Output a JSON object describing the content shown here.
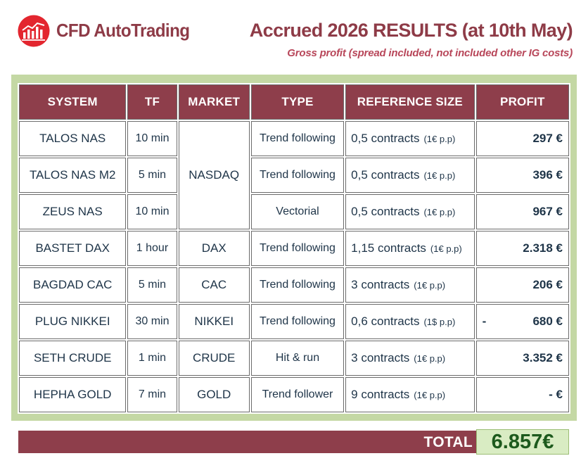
{
  "header": {
    "brand": "CFD AutoTrading",
    "title": "Accrued 2026 RESULTS (at 10th May)",
    "subtitle": "Gross profit (spread included, not included other IG costs)"
  },
  "table": {
    "columns": [
      "SYSTEM",
      "TF",
      "MARKET",
      "TYPE",
      "REFERENCE SIZE",
      "PROFIT"
    ],
    "rows": [
      {
        "system": "TALOS NAS",
        "tf": "10 min",
        "market": "NASDAQ",
        "type": "Trend following",
        "size": "0,5 contracts",
        "pp": "(1€ p.p)",
        "sign": "",
        "profit": "297 €"
      },
      {
        "system": "TALOS NAS M2",
        "tf": "5 min",
        "market": "",
        "type": "Trend following",
        "size": "0,5 contracts",
        "pp": "(1€ p.p)",
        "sign": "",
        "profit": "396 €"
      },
      {
        "system": "ZEUS NAS",
        "tf": "10 min",
        "market": "",
        "type": "Vectorial",
        "size": "0,5 contracts",
        "pp": "(1€ p.p)",
        "sign": "",
        "profit": "967 €"
      },
      {
        "system": "BASTET DAX",
        "tf": "1 hour",
        "market": "DAX",
        "type": "Trend following",
        "size": "1,15 contracts",
        "pp": "(1€ p.p)",
        "sign": "",
        "profit": "2.318 €"
      },
      {
        "system": "BAGDAD CAC",
        "tf": "5 min",
        "market": "CAC",
        "type": "Trend following",
        "size": "3 contracts",
        "pp": "(1€ p.p)",
        "sign": "",
        "profit": "206 €"
      },
      {
        "system": "PLUG NIKKEI",
        "tf": "30 min",
        "market": "NIKKEI",
        "type": "Trend following",
        "size": "0,6 contracts",
        "pp": "(1$ p.p)",
        "sign": "-",
        "profit": "680 €"
      },
      {
        "system": "SETH CRUDE",
        "tf": "1 min",
        "market": "CRUDE",
        "type": "Hit & run",
        "size": "3 contracts",
        "pp": "(1€ p.p)",
        "sign": "",
        "profit": "3.352 €"
      },
      {
        "system": "HEPHA GOLD",
        "tf": "7 min",
        "market": "GOLD",
        "type": "Trend follower",
        "size": "9 contracts",
        "pp": "(1€ p.p)",
        "sign": "",
        "profit": "-   €"
      }
    ]
  },
  "total": {
    "label": "TOTAL",
    "value": "6.857€"
  },
  "colors": {
    "accent": "#8e3e4b",
    "panel": "#c4d8a4",
    "total_box": "#d9ecc3",
    "total_text": "#1d5a1d"
  },
  "icons": {
    "logo": "bar-chart-logo-icon"
  }
}
